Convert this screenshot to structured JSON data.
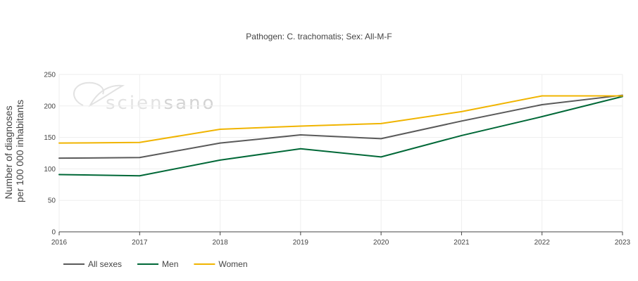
{
  "chart_data": {
    "type": "line",
    "title": "Pathogen: C. trachomatis; Sex: All-M-F",
    "ylabel_line1": "Number of diagnoses",
    "ylabel_line2": "per 100 000 inhabitants",
    "x": [
      "2016",
      "2017",
      "2018",
      "2019",
      "2020",
      "2021",
      "2022",
      "2023"
    ],
    "y_ticks": [
      0,
      50,
      100,
      150,
      200,
      250
    ],
    "ylim": [
      0,
      250
    ],
    "grid": true,
    "legend_placement": "bottom-left",
    "series": [
      {
        "name": "All sexes",
        "color": "#5a5a5a",
        "values": [
          117,
          118,
          141,
          154,
          148,
          176,
          202,
          217
        ]
      },
      {
        "name": "Men",
        "color": "#006837",
        "values": [
          91,
          89,
          114,
          132,
          119,
          153,
          183,
          215
        ]
      },
      {
        "name": "Women",
        "color": "#f0b400",
        "values": [
          141,
          142,
          163,
          168,
          172,
          191,
          216,
          216
        ]
      }
    ]
  },
  "watermark": {
    "text_light": "scien",
    "text_bold": "sano",
    "icon": "sciensano-leaf-logo"
  }
}
